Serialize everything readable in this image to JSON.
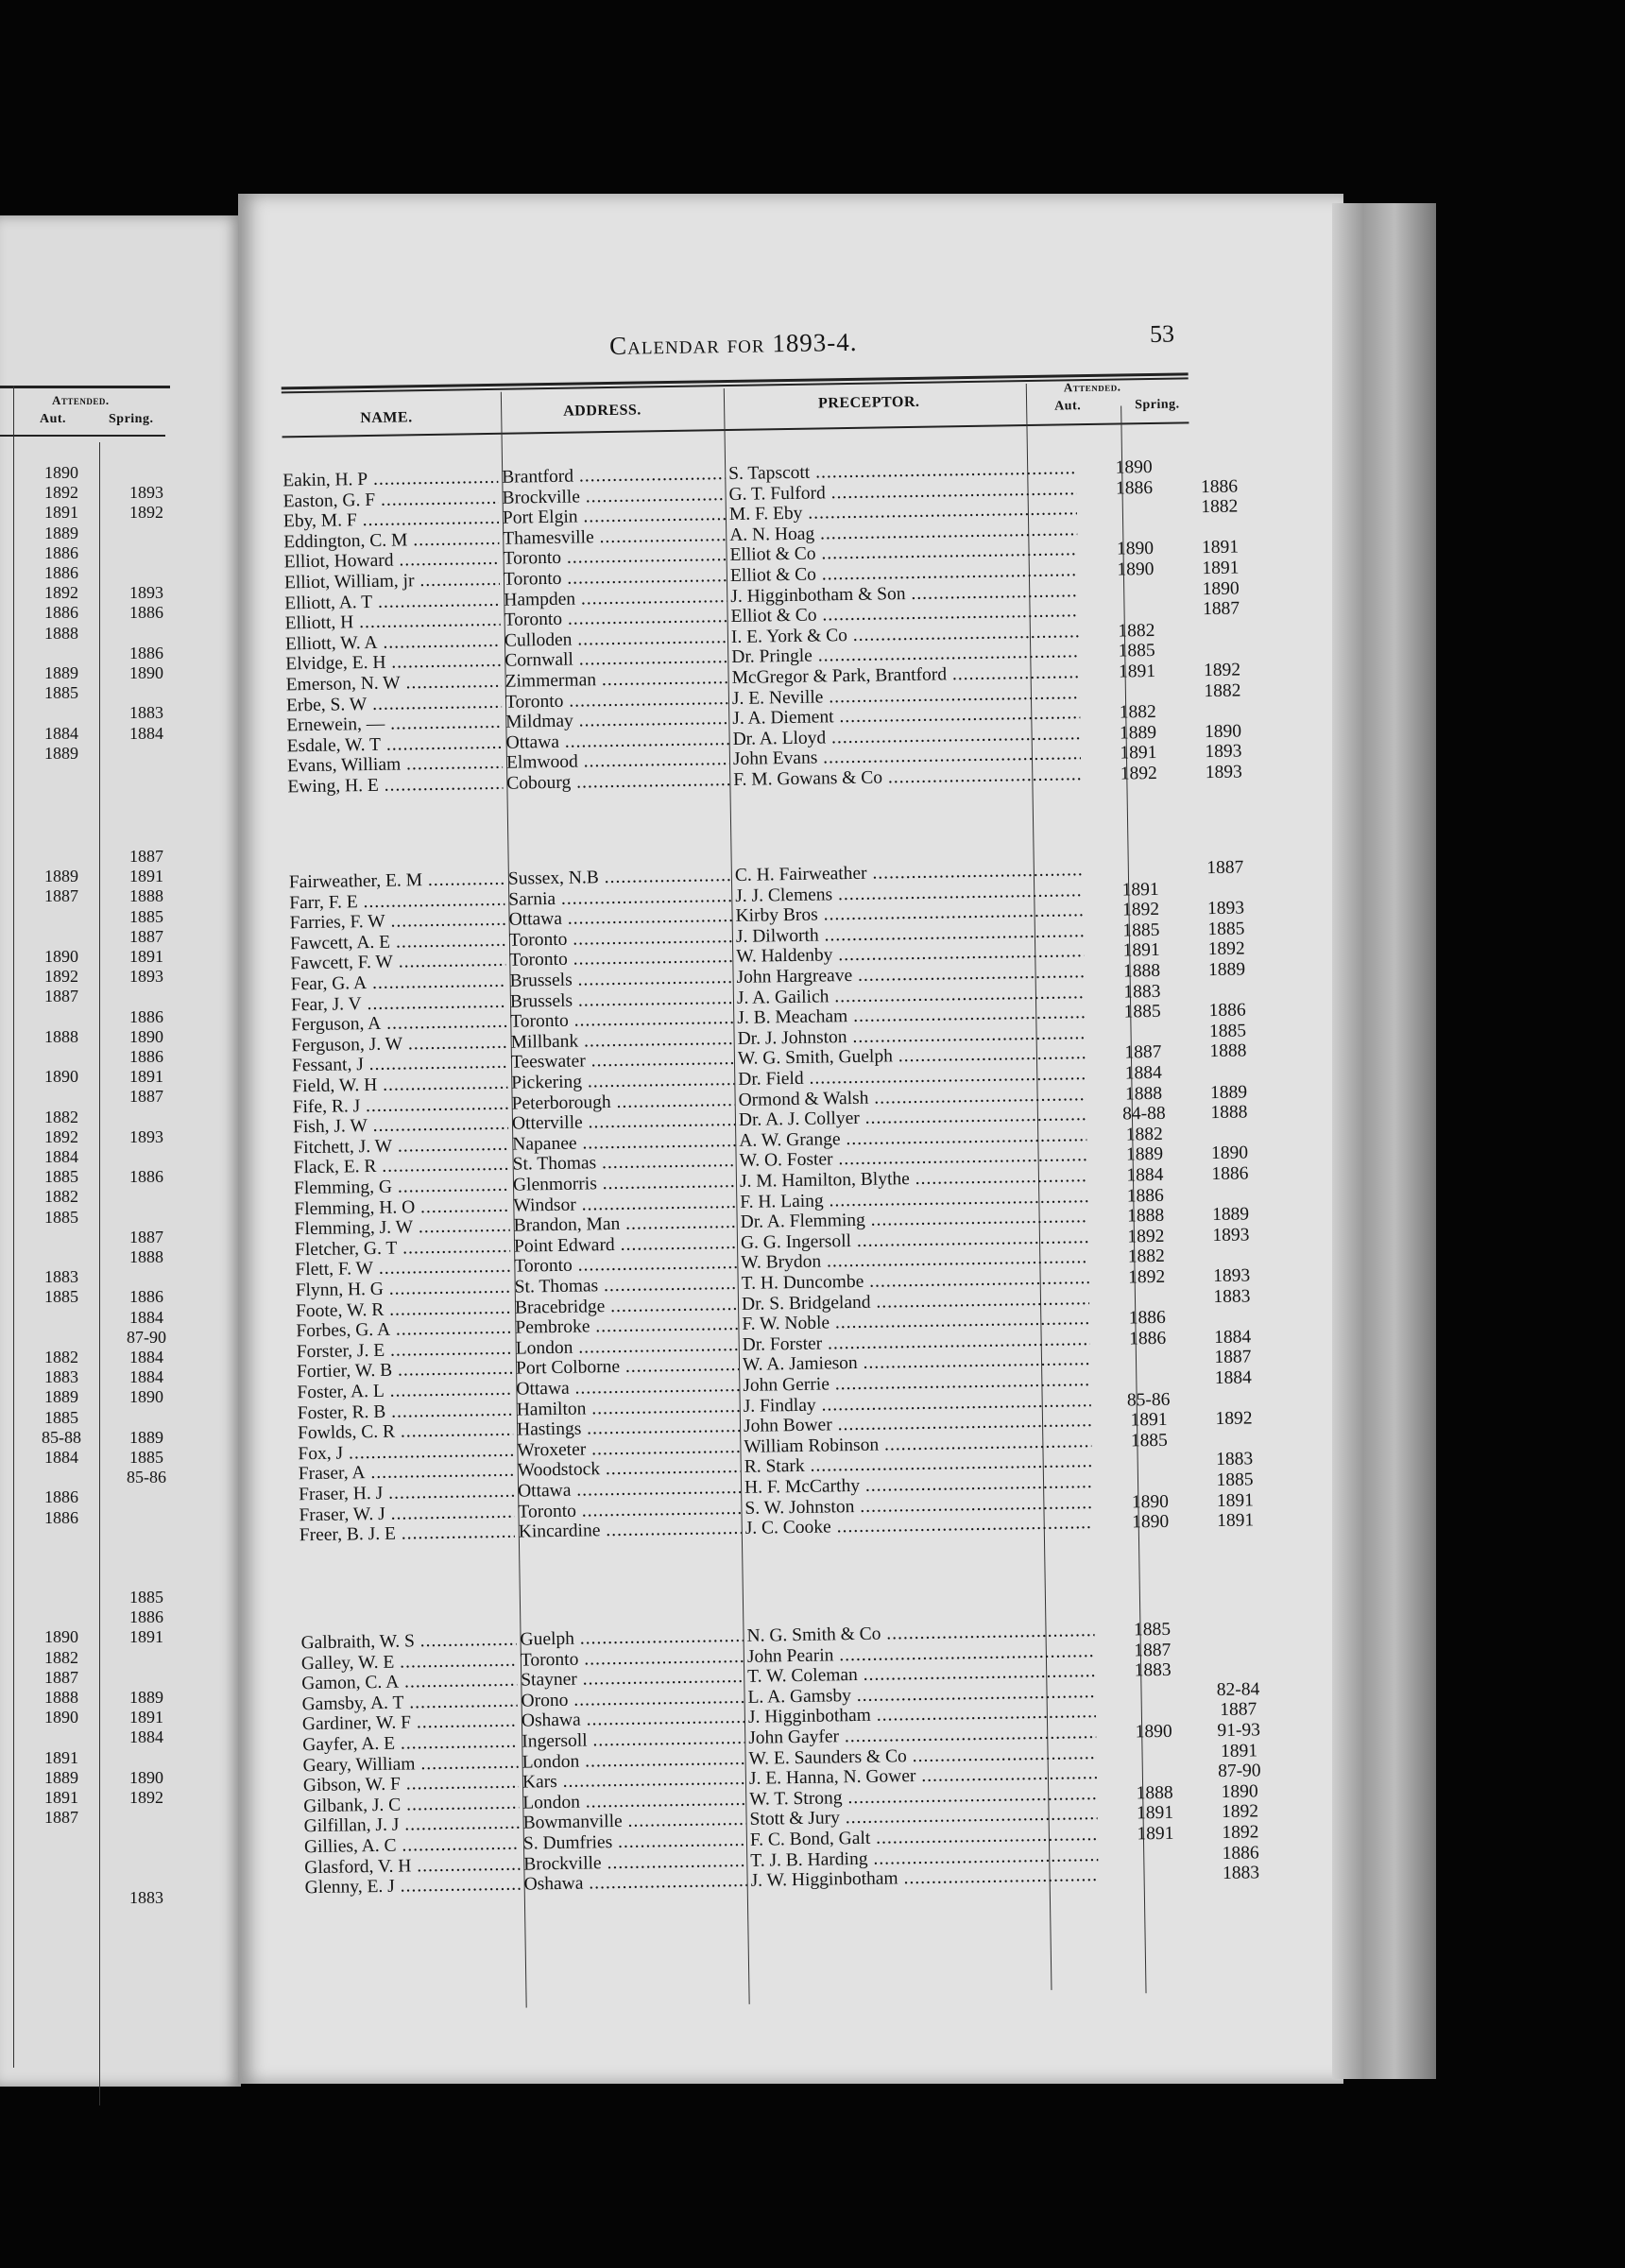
{
  "page": {
    "running_head": "Calendar for 1893-4.",
    "page_number": "53",
    "columns": {
      "name": "NAME.",
      "address": "ADDRESS.",
      "preceptor": "PRECEPTOR.",
      "attended": "Attended.",
      "aut": "Aut.",
      "spring": "Spring."
    }
  },
  "left_page": {
    "columns": {
      "attended": "Attended.",
      "aut": "Aut.",
      "spring": "Spring."
    },
    "blocks": [
      [
        [
          "1890",
          ""
        ],
        [
          "1892",
          "1893"
        ],
        [
          "1891",
          "1892"
        ],
        [
          "1889",
          ""
        ],
        [
          "1886",
          ""
        ],
        [
          "1886",
          ""
        ],
        [
          "1892",
          "1893"
        ],
        [
          "1886",
          "1886"
        ],
        [
          "1888",
          ""
        ],
        [
          "",
          "1886"
        ],
        [
          "1889",
          "1890"
        ],
        [
          "1885",
          ""
        ],
        [
          "",
          "1883"
        ],
        [
          "1884",
          "1884"
        ],
        [
          "1889",
          ""
        ]
      ],
      [
        [
          "",
          "1887"
        ],
        [
          "1889",
          "1891"
        ],
        [
          "1887",
          "1888"
        ],
        [
          "",
          "1885"
        ],
        [
          "",
          "1887"
        ],
        [
          "1890",
          "1891"
        ],
        [
          "1892",
          "1893"
        ],
        [
          "1887",
          ""
        ],
        [
          "",
          "1886"
        ],
        [
          "1888",
          "1890"
        ],
        [
          "",
          "1886"
        ],
        [
          "1890",
          "1891"
        ],
        [
          "",
          "1887"
        ],
        [
          "1882",
          ""
        ],
        [
          "1892",
          "1893"
        ],
        [
          "1884",
          ""
        ],
        [
          "1885",
          "1886"
        ],
        [
          "1882",
          ""
        ],
        [
          "1885",
          ""
        ],
        [
          "",
          "1887"
        ],
        [
          "",
          "1888"
        ],
        [
          "1883",
          ""
        ],
        [
          "1885",
          "1886"
        ],
        [
          "",
          "1884"
        ],
        [
          "",
          "87-90"
        ],
        [
          "1882",
          "1884"
        ],
        [
          "1883",
          "1884"
        ],
        [
          "1889",
          "1890"
        ],
        [
          "1885",
          ""
        ],
        [
          "85-88",
          "1889"
        ],
        [
          "1884",
          "1885"
        ],
        [
          "",
          "85-86"
        ],
        [
          "1886",
          ""
        ],
        [
          "1886",
          ""
        ]
      ],
      [
        [
          "",
          "1885"
        ],
        [
          "",
          "1886"
        ],
        [
          "1890",
          "1891"
        ],
        [
          "1882",
          ""
        ],
        [
          "1887",
          ""
        ],
        [
          "1888",
          "1889"
        ],
        [
          "1890",
          "1891"
        ],
        [
          "",
          "1884"
        ],
        [
          "1891",
          ""
        ],
        [
          "1889",
          "1890"
        ],
        [
          "1891",
          "1892"
        ],
        [
          "1887",
          ""
        ],
        [
          "",
          ""
        ],
        [
          "",
          ""
        ],
        [
          "",
          ""
        ],
        [
          "",
          "1883"
        ]
      ]
    ]
  },
  "blocks": [
    [
      [
        "Eakin, H. P",
        "Brantford",
        "S. Tapscott",
        "1890",
        ""
      ],
      [
        "Easton, G. F",
        "Brockville",
        "G. T. Fulford",
        "1886",
        "1886"
      ],
      [
        "Eby, M. F",
        "Port Elgin",
        "M. F. Eby",
        "",
        "1882"
      ],
      [
        "Eddington, C. M",
        "Thamesville",
        "A. N. Hoag",
        "",
        ""
      ],
      [
        "Elliot, Howard",
        "Toronto",
        "Elliot & Co",
        "1890",
        "1891"
      ],
      [
        "Elliot, William, jr",
        "Toronto",
        "Elliot & Co",
        "1890",
        "1891"
      ],
      [
        "Elliott, A. T",
        "Hampden",
        "J. Higginbotham & Son",
        "",
        "1890"
      ],
      [
        "Elliott, H",
        "Toronto",
        "Elliot & Co",
        "",
        "1887"
      ],
      [
        "Elliott, W. A",
        "Culloden",
        "I. E. York & Co",
        "1882",
        ""
      ],
      [
        "Elvidge, E. H",
        "Cornwall",
        "Dr. Pringle",
        "1885",
        ""
      ],
      [
        "Emerson, N. W",
        "Zimmerman",
        "McGregor & Park, Brantford",
        "1891",
        "1892"
      ],
      [
        "Erbe, S. W",
        "Toronto",
        "J. E. Neville",
        "",
        "1882"
      ],
      [
        "Ernewein, —",
        "Mildmay",
        "J. A. Diement",
        "1882",
        ""
      ],
      [
        "Esdale, W. T",
        "Ottawa",
        "Dr. A. Lloyd",
        "1889",
        "1890"
      ],
      [
        "Evans, William",
        "Elmwood",
        "John Evans",
        "1891",
        "1893"
      ],
      [
        "Ewing, H. E",
        "Cobourg",
        "F. M. Gowans & Co",
        "1892",
        "1893"
      ]
    ],
    [
      [
        "Fairweather, E. M",
        "Sussex, N.B",
        "C. H. Fairweather",
        "",
        "1887"
      ],
      [
        "Farr, F. E",
        "Sarnia",
        "J. J. Clemens",
        "1891",
        ""
      ],
      [
        "Farries, F. W",
        "Ottawa",
        "Kirby Bros",
        "1892",
        "1893"
      ],
      [
        "Fawcett, A. E",
        "Toronto",
        "J. Dilworth",
        "1885",
        "1885"
      ],
      [
        "Fawcett, F. W",
        "Toronto",
        "W. Haldenby",
        "1891",
        "1892"
      ],
      [
        "Fear, G. A",
        "Brussels",
        "John Hargreave",
        "1888",
        "1889"
      ],
      [
        "Fear, J. V",
        "Brussels",
        "J. A. Gailich",
        "1883",
        ""
      ],
      [
        "Ferguson, A",
        "Toronto",
        "J. B. Meacham",
        "1885",
        "1886"
      ],
      [
        "Ferguson, J. W",
        "Millbank",
        "Dr. J. Johnston",
        "",
        "1885"
      ],
      [
        "Fessant, J",
        "Teeswater",
        "W. G. Smith, Guelph",
        "1887",
        "1888"
      ],
      [
        "Field, W. H",
        "Pickering",
        "Dr. Field",
        "1884",
        ""
      ],
      [
        "Fife, R. J",
        "Peterborough",
        "Ormond & Walsh",
        "1888",
        "1889"
      ],
      [
        "Fish, J. W",
        "Otterville",
        "Dr. A. J. Collyer",
        "84-88",
        "1888"
      ],
      [
        "Fitchett, J. W",
        "Napanee",
        "A. W. Grange",
        "1882",
        ""
      ],
      [
        "Flack, E. R",
        "St. Thomas",
        "W. O. Foster",
        "1889",
        "1890"
      ],
      [
        "Flemming, G",
        "Glenmorris",
        "J. M. Hamilton, Blythe",
        "1884",
        "1886"
      ],
      [
        "Flemming, H. O",
        "Windsor",
        "F. H. Laing",
        "1886",
        ""
      ],
      [
        "Flemming, J. W",
        "Brandon, Man",
        "Dr. A. Flemming",
        "1888",
        "1889"
      ],
      [
        "Fletcher, G. T",
        "Point Edward",
        "G. G. Ingersoll",
        "1892",
        "1893"
      ],
      [
        "Flett, F. W",
        "Toronto",
        "W. Brydon",
        "1882",
        ""
      ],
      [
        "Flynn, H. G",
        "St. Thomas",
        "T. H. Duncombe",
        "1892",
        "1893"
      ],
      [
        "Foote, W. R",
        "Bracebridge",
        "Dr. S. Bridgeland",
        "",
        "1883"
      ],
      [
        "Forbes, G. A",
        "Pembroke",
        "F. W. Noble",
        "1886",
        ""
      ],
      [
        "Forster, J. E",
        "London",
        "Dr. Forster",
        "1886",
        "1884"
      ],
      [
        "Fortier, W. B",
        "Port Colborne",
        "W. A. Jamieson",
        "",
        "1887"
      ],
      [
        "Foster, A. L",
        "Ottawa",
        "John Gerrie",
        "",
        "1884"
      ],
      [
        "Foster, R. B",
        "Hamilton",
        "J. Findlay",
        "85-86",
        ""
      ],
      [
        "Fowlds, C. R",
        "Hastings",
        "John Bower",
        "1891",
        "1892"
      ],
      [
        "Fox, J",
        "Wroxeter",
        "William Robinson",
        "1885",
        ""
      ],
      [
        "Fraser, A",
        "Woodstock",
        "R. Stark",
        "",
        "1883"
      ],
      [
        "Fraser, H. J",
        "Ottawa",
        "H. F. McCarthy",
        "",
        "1885"
      ],
      [
        "Fraser, W. J",
        "Toronto",
        "S. W. Johnston",
        "1890",
        "1891"
      ],
      [
        "Freer, B. J. E",
        "Kincardine",
        "J. C. Cooke",
        "1890",
        "1891"
      ]
    ],
    [
      [
        "Galbraith, W. S",
        "Guelph",
        "N. G. Smith & Co",
        "1885",
        ""
      ],
      [
        "Galley, W. E",
        "Toronto",
        "John Pearin",
        "1887",
        ""
      ],
      [
        "Gamon, C. A",
        "Stayner",
        "T. W. Coleman",
        "1883",
        ""
      ],
      [
        "Gamsby, A. T",
        "Orono",
        "L. A. Gamsby",
        "",
        "82-84"
      ],
      [
        "Gardiner, W. F",
        "Oshawa",
        "J. Higginbotham",
        "",
        "1887"
      ],
      [
        "Gayfer, A. E",
        "Ingersoll",
        "John Gayfer",
        "1890",
        "91-93"
      ],
      [
        "Geary, William",
        "London",
        "W. E. Saunders & Co",
        "",
        "1891"
      ],
      [
        "Gibson, W. F",
        "Kars",
        "J. E. Hanna, N. Gower",
        "",
        "87-90"
      ],
      [
        "Gilbank, J. C",
        "London",
        "W. T. Strong",
        "1888",
        "1890"
      ],
      [
        "Gilfillan, J. J",
        "Bowmanville",
        "Stott & Jury",
        "1891",
        "1892"
      ],
      [
        "Gillies, A. C",
        "S. Dumfries",
        "F. C. Bond, Galt",
        "1891",
        "1892"
      ],
      [
        "Glasford, V. H",
        "Brockville",
        "T. J. B. Harding",
        "",
        "1886"
      ],
      [
        "Glenny, E. J",
        "Oshawa",
        "J. W. Higginbotham",
        "",
        "1883"
      ]
    ]
  ]
}
